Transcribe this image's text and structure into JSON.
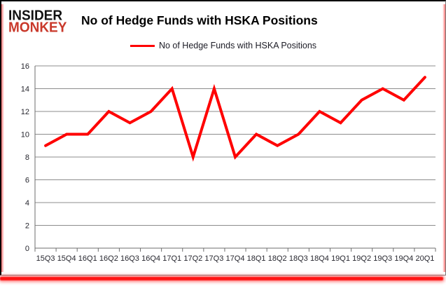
{
  "logo": {
    "line1": "INSIDER",
    "line2": "MONKEY"
  },
  "header": {
    "title": "No of Hedge Funds with HSKA Positions"
  },
  "legend": {
    "label": "No of Hedge Funds with HSKA Positions",
    "line_color": "#ff0000"
  },
  "colors": {
    "series_line": "#ff0000",
    "logo_red": "#c9382a",
    "grid": "#8c8c8c",
    "axis": "#6e6e6e",
    "tick_text": "#26262e",
    "frame_border": "#000000",
    "edge_glow": "#ff5a5a",
    "bottom_divider": "#ff1414"
  },
  "chart_data": {
    "type": "line",
    "title": "No of Hedge Funds with HSKA Positions",
    "xlabel": "",
    "ylabel": "",
    "categories": [
      "15Q3",
      "15Q4",
      "16Q1",
      "16Q2",
      "16Q3",
      "16Q4",
      "17Q1",
      "17Q2",
      "17Q3",
      "17Q4",
      "18Q1",
      "18Q2",
      "18Q3",
      "18Q4",
      "19Q1",
      "19Q2",
      "19Q3",
      "19Q4",
      "20Q1"
    ],
    "series": [
      {
        "name": "No of Hedge Funds with HSKA Positions",
        "color": "#ff0000",
        "values": [
          9,
          10,
          10,
          12,
          11,
          12,
          14,
          8,
          14,
          8,
          10,
          9,
          10,
          12,
          11,
          13,
          14,
          13,
          15
        ]
      }
    ],
    "ylim": [
      0,
      16
    ],
    "ytick_step": 2,
    "grid": true,
    "legend_position": "top-center"
  }
}
